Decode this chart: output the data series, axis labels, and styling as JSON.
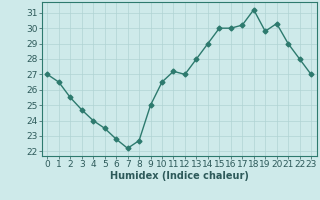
{
  "x": [
    0,
    1,
    2,
    3,
    4,
    5,
    6,
    7,
    8,
    9,
    10,
    11,
    12,
    13,
    14,
    15,
    16,
    17,
    18,
    19,
    20,
    21,
    22,
    23
  ],
  "y": [
    27,
    26.5,
    25.5,
    24.7,
    24,
    23.5,
    22.8,
    22.2,
    22.7,
    25,
    26.5,
    27.2,
    27,
    28,
    29,
    30,
    30,
    30.2,
    31.2,
    29.8,
    30.3,
    29,
    28,
    27
  ],
  "line_color": "#2d7a6e",
  "marker": "D",
  "markersize": 2.5,
  "linewidth": 1.0,
  "bg_color": "#ceeaea",
  "grid_color": "#b0d4d4",
  "xlabel": "Humidex (Indice chaleur)",
  "xlabel_fontsize": 7,
  "yticks": [
    22,
    23,
    24,
    25,
    26,
    27,
    28,
    29,
    30,
    31
  ],
  "xticks": [
    0,
    1,
    2,
    3,
    4,
    5,
    6,
    7,
    8,
    9,
    10,
    11,
    12,
    13,
    14,
    15,
    16,
    17,
    18,
    19,
    20,
    21,
    22,
    23
  ],
  "xlim": [
    -0.5,
    23.5
  ],
  "ylim": [
    21.7,
    31.7
  ],
  "tick_fontsize": 6.5
}
